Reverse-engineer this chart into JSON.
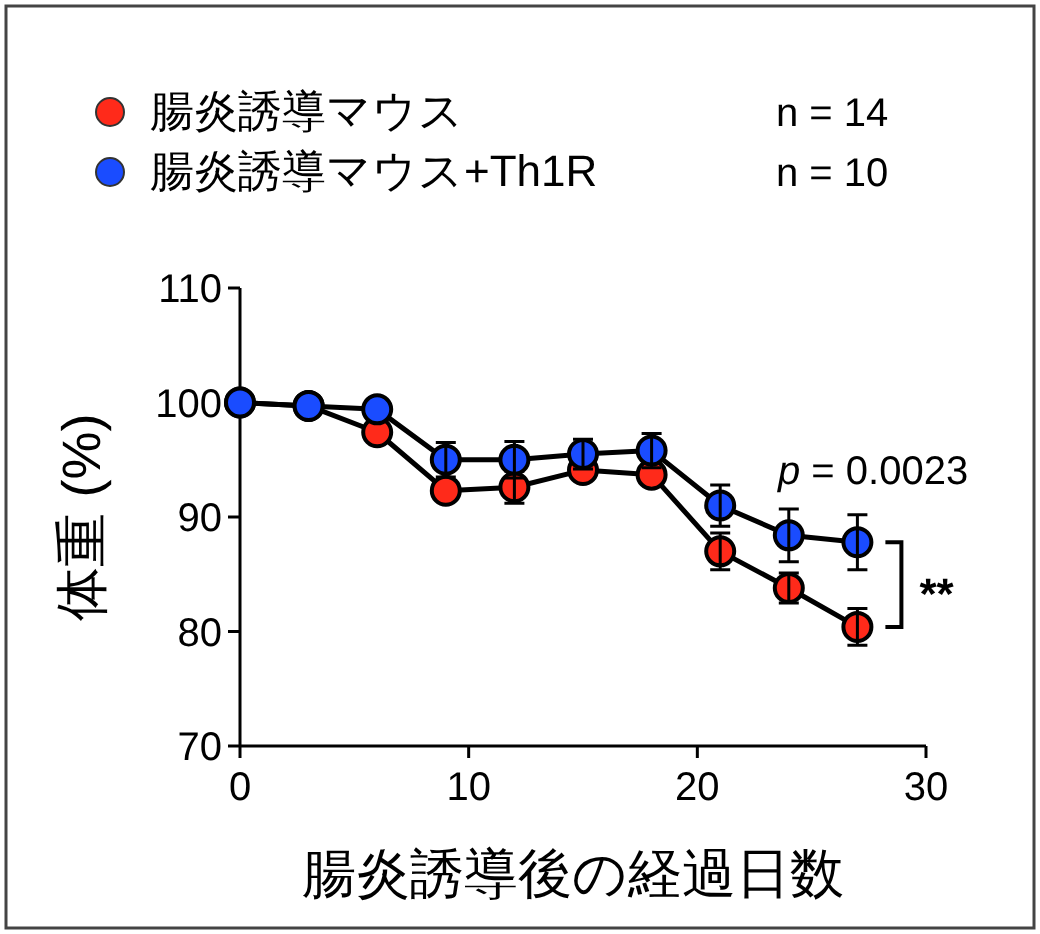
{
  "chart_data": {
    "type": "line",
    "xlabel": "腸炎誘導後の経過日数",
    "ylabel": "体重 (%)",
    "x": [
      0,
      3,
      6,
      9,
      12,
      15,
      18,
      21,
      24,
      27
    ],
    "series": [
      {
        "name": "腸炎誘導マウス",
        "color": "#ff2a1a",
        "values": [
          100,
          99.7,
          97.4,
          92.3,
          92.6,
          94.1,
          93.7,
          87.0,
          83.8,
          80.4
        ],
        "errors": [
          null,
          null,
          null,
          null,
          1.4,
          null,
          null,
          1.6,
          1.3,
          1.6
        ]
      },
      {
        "name": "腸炎誘導マウス+Th1R",
        "color": "#1a4cff",
        "values": [
          100,
          99.7,
          99.4,
          95.0,
          95.0,
          95.5,
          95.8,
          91.0,
          88.4,
          87.8
        ],
        "errors": [
          null,
          null,
          null,
          1.5,
          1.6,
          1.3,
          1.5,
          1.8,
          2.3,
          2.4
        ]
      }
    ],
    "xlim": [
      0,
      30
    ],
    "xticks": [
      0,
      10,
      20,
      30
    ],
    "ylim": [
      70,
      110
    ],
    "yticks": [
      70,
      80,
      90,
      100,
      110
    ],
    "marker": "circle",
    "line_style": "solid",
    "legend": "top left",
    "grid": false,
    "annotations": [
      "n = 14",
      "n = 10",
      "p = 0.0023",
      "**"
    ]
  }
}
